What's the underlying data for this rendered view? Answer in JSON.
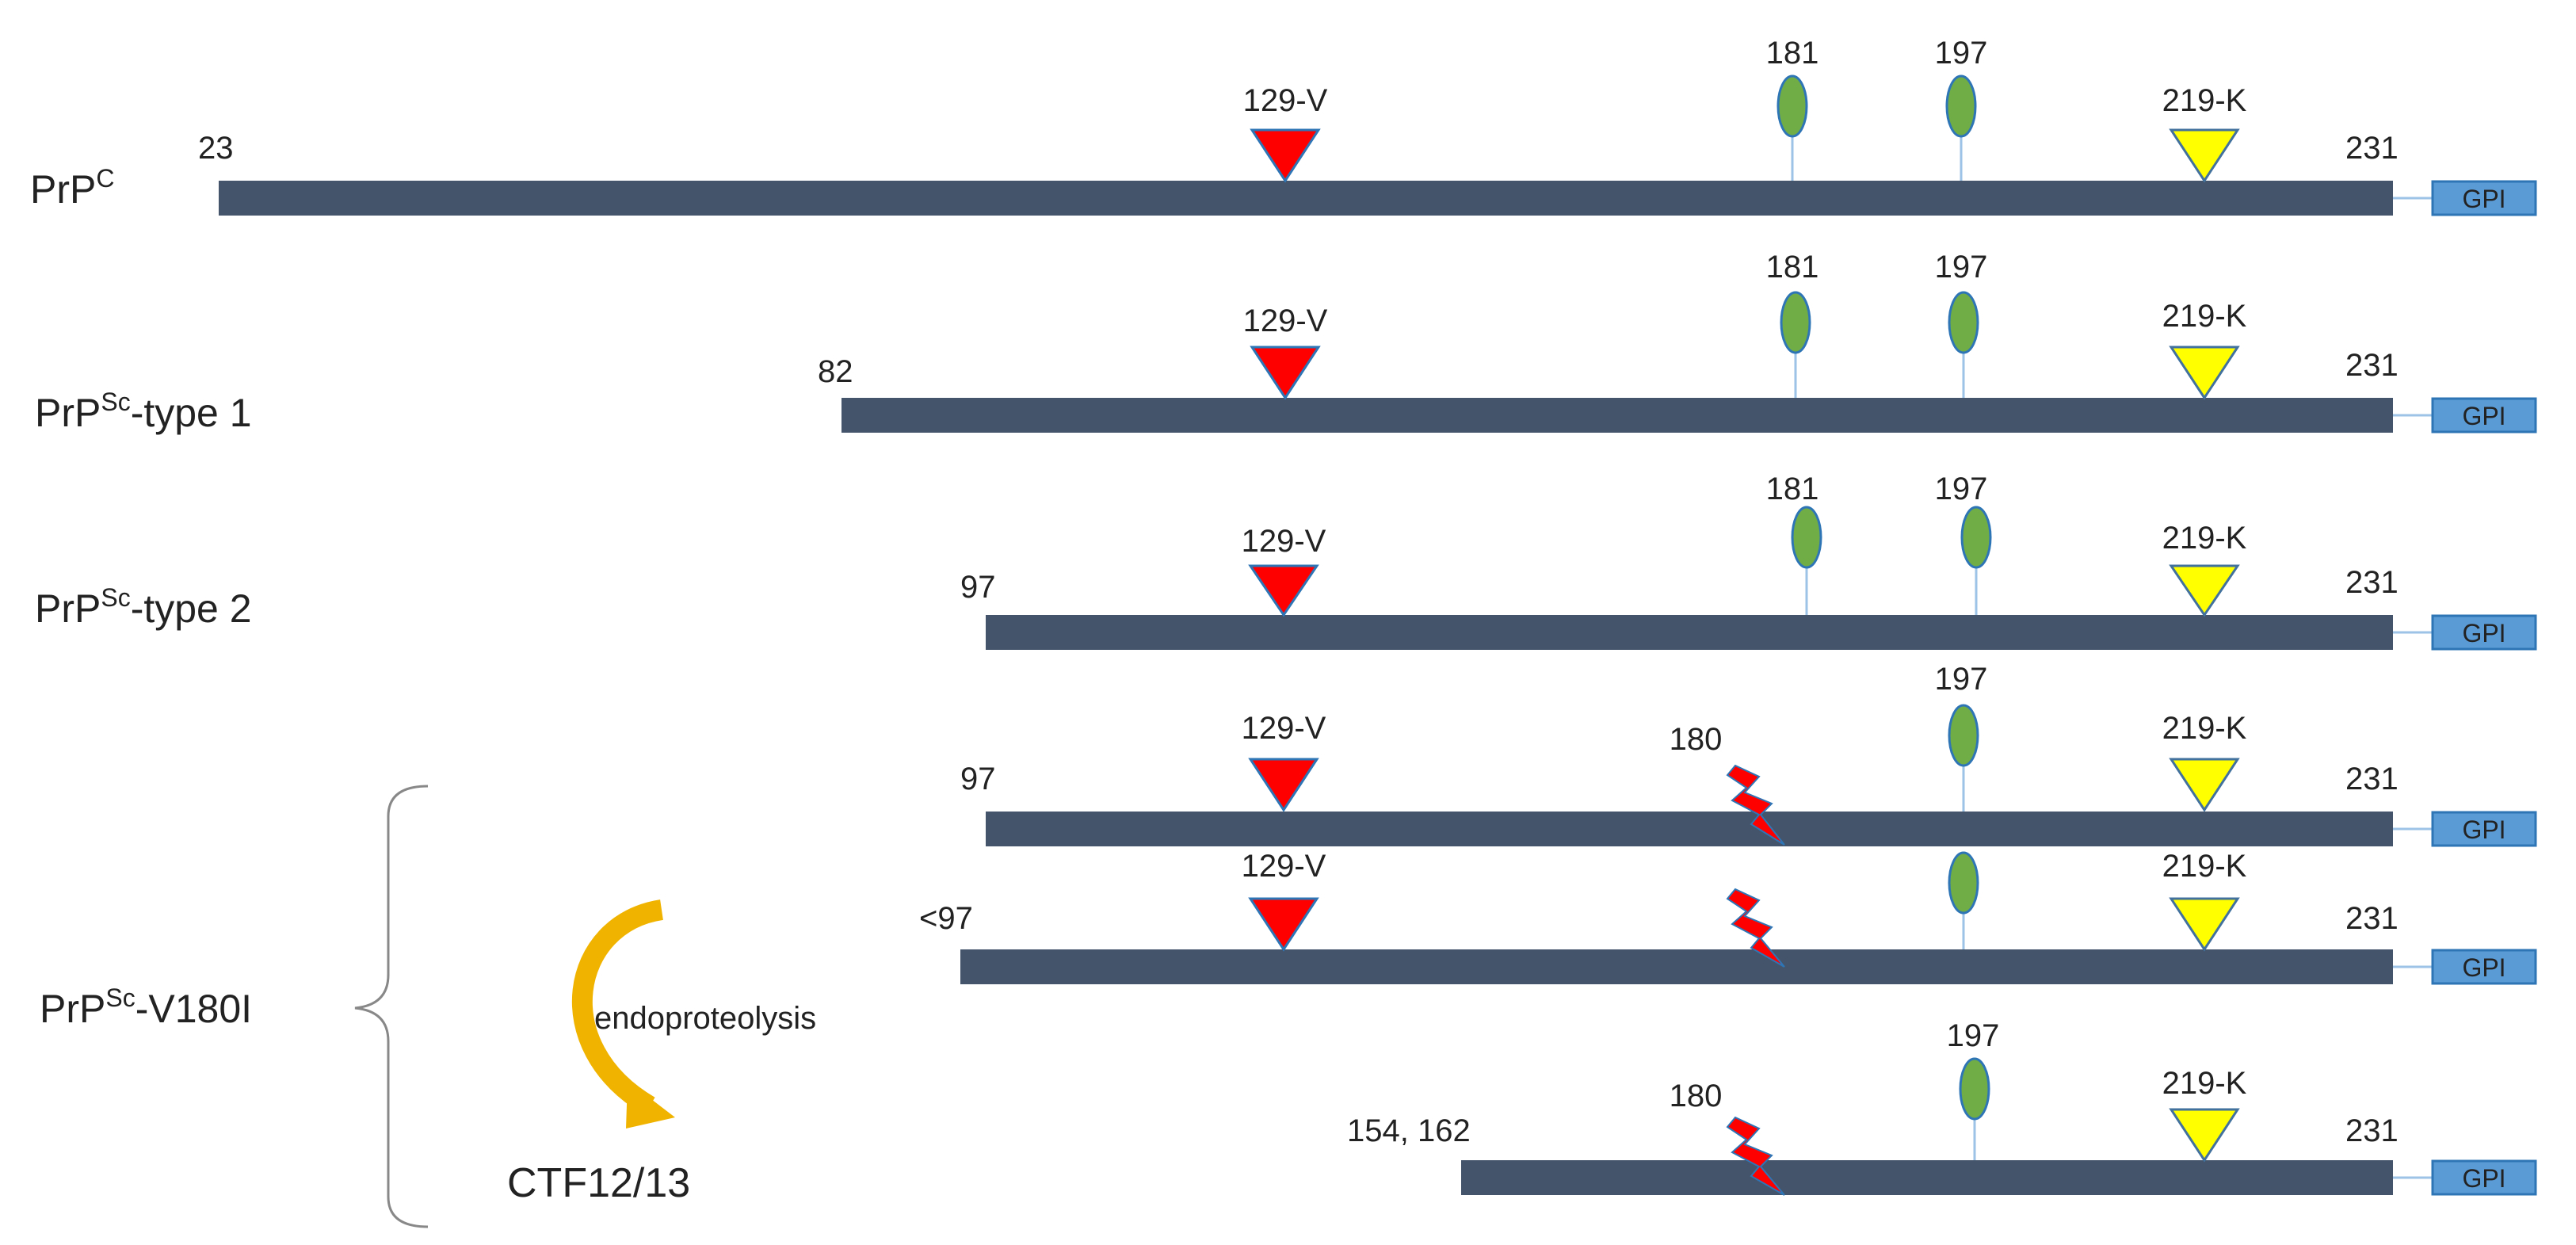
{
  "constructs": [
    {
      "label": "PrP",
      "label_sup": "C",
      "label_suffix": "",
      "start": "23",
      "end": "231",
      "gpi": "GPI",
      "v129": "129-V",
      "k219": "219-K",
      "glyco": [
        {
          "label": "181"
        },
        {
          "label": "197"
        }
      ]
    },
    {
      "label": "PrP",
      "label_sup": "Sc",
      "label_suffix": "-type 1",
      "start": "82",
      "end": "231",
      "gpi": "GPI",
      "v129": "129-V",
      "k219": "219-K",
      "glyco": [
        {
          "label": "181"
        },
        {
          "label": "197"
        }
      ]
    },
    {
      "label": "PrP",
      "label_sup": "Sc",
      "label_suffix": "-type 2",
      "start": "97",
      "end": "231",
      "gpi": "GPI",
      "v129": "129-V",
      "k219": "219-K",
      "glyco": [
        {
          "label": "181"
        },
        {
          "label": "197"
        }
      ]
    },
    {
      "label": "",
      "label_sup": "",
      "label_suffix": "",
      "start": "97",
      "end": "231",
      "gpi": "GPI",
      "v129": "129-V",
      "k219": "219-K",
      "mutation": "180",
      "glyco": [
        {
          "label": "197"
        }
      ]
    },
    {
      "label": "",
      "label_sup": "",
      "label_suffix": "",
      "start": "<97",
      "end": "231",
      "gpi": "GPI",
      "v129": "129-V",
      "k219": "219-K",
      "mutation": "",
      "glyco": [
        {
          "label": ""
        }
      ]
    },
    {
      "label": "",
      "label_sup": "",
      "label_suffix": "",
      "start": "154, 162",
      "end": "231",
      "gpi": "GPI",
      "k219": "219-K",
      "mutation": "180",
      "glyco": [
        {
          "label": "197"
        }
      ]
    }
  ],
  "group": {
    "label": "PrP",
    "label_sup": "Sc",
    "label_suffix": "-V180I",
    "process": "endoproteolysis",
    "product": "CTF12/13"
  },
  "colors": {
    "bar": "#44546A",
    "gpi_fill": "#5B9BD5",
    "v129": "#FF0000",
    "k219": "#FFFF00",
    "glyco": "#70AD47",
    "mutation": "#FF0000",
    "arrow": "#F0B400"
  }
}
